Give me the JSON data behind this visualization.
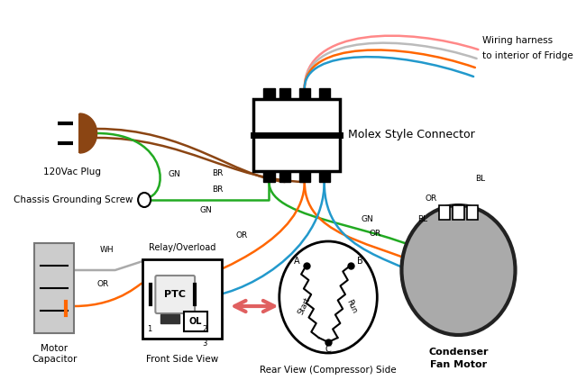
{
  "bg_color": "#ffffff",
  "wire_colors": {
    "green": "#22aa22",
    "brown": "#8B4513",
    "orange": "#FF6600",
    "blue": "#2299CC",
    "white": "#aaaaaa",
    "pink": "#FF8888",
    "gray": "#bbbbbb"
  },
  "labels": {
    "plug": "120Vac Plug",
    "chassis": "Chassis Grounding Screw",
    "molex": "Molex Style Connector",
    "harness_line1": "Wiring harness",
    "harness_line2": "to interior of Fridge",
    "motor_cap_line1": "Motor",
    "motor_cap_line2": "Capacitor",
    "relay_label": "Relay/Overload",
    "front_view": "Front Side View",
    "rear_view": "Rear View (Compressor) Side",
    "condenser_line1": "Condenser",
    "condenser_line2": "Fan Motor",
    "ptc": "PTC",
    "ol": "OL"
  }
}
